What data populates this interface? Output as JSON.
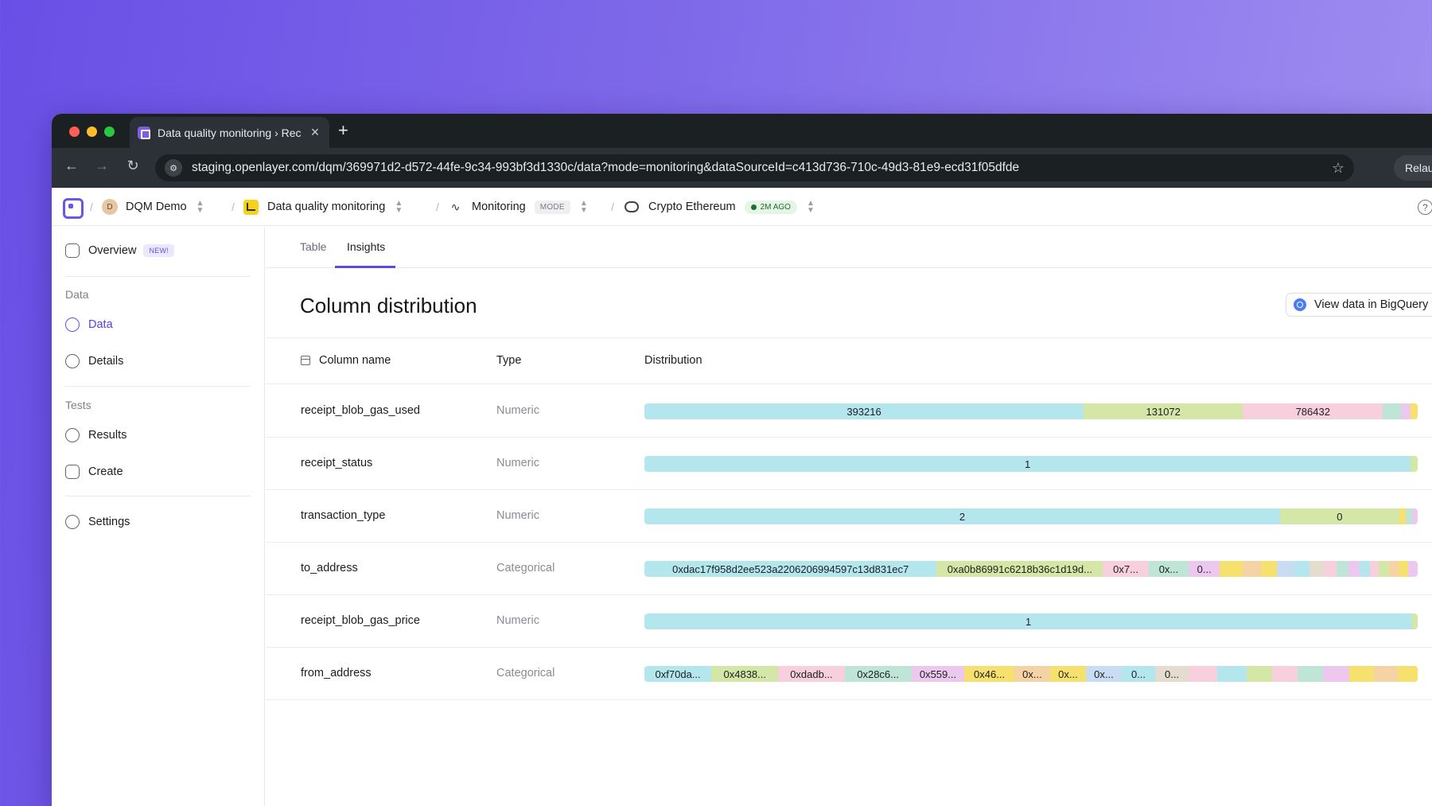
{
  "browser": {
    "tab_title": "Data quality monitoring › Rec",
    "tab_close_glyph": "×",
    "new_tab_glyph": "+",
    "url": "staging.openlayer.com/dqm/369971d2-d572-44fe-9c34-993bf3d1330c/data?mode=monitoring&dataSourceId=c413d736-710c-49d3-81e9-ecd31f05dfde",
    "relaunch_label": "Relau"
  },
  "breadcrumbs": {
    "workspace": "DQM Demo",
    "workspace_initial": "D",
    "project": "Data quality monitoring",
    "mode_label": "Monitoring",
    "mode_badge": "MODE",
    "source": "Crypto Ethereum",
    "source_badge": "2M AGO"
  },
  "sidebar": {
    "overview": "Overview",
    "new_badge": "NEW!",
    "data_heading": "Data",
    "data": "Data",
    "details": "Details",
    "tests_heading": "Tests",
    "results": "Results",
    "create": "Create",
    "settings": "Settings"
  },
  "tabs": {
    "table": "Table",
    "insights": "Insights"
  },
  "page": {
    "title": "Column distribution",
    "bigquery_button": "View data in BigQuery",
    "headers": {
      "name": "Column name",
      "type": "Type",
      "distribution": "Distribution"
    }
  },
  "colors": {
    "accent": "#6548e0",
    "palette": [
      "#b4e6ee",
      "#d4e7a6",
      "#f7cfdd",
      "#bfe5d6",
      "#ecc8ee",
      "#f6e06e",
      "#f6d3a4",
      "#c8dcf3",
      "#e3dccf"
    ]
  },
  "columns": [
    {
      "name": "receipt_blob_gas_used",
      "type": "Numeric",
      "segments": [
        {
          "label": "393216",
          "pct": 56.8,
          "color": "#b4e6ee"
        },
        {
          "label": "131072",
          "pct": 20.6,
          "color": "#d4e7a6"
        },
        {
          "label": "786432",
          "pct": 18.1,
          "color": "#f7cfdd"
        },
        {
          "label": "",
          "pct": 2.3,
          "color": "#bfe5d6"
        },
        {
          "label": "",
          "pct": 1.3,
          "color": "#ecc8ee"
        },
        {
          "label": "",
          "pct": 0.9,
          "color": "#f6e06e"
        }
      ]
    },
    {
      "name": "receipt_status",
      "type": "Numeric",
      "segments": [
        {
          "label": "1",
          "pct": 99.1,
          "color": "#b4e6ee"
        },
        {
          "label": "",
          "pct": 0.9,
          "color": "#d4e7a6"
        }
      ]
    },
    {
      "name": "transaction_type",
      "type": "Numeric",
      "segments": [
        {
          "label": "2",
          "pct": 82.2,
          "color": "#b4e6ee"
        },
        {
          "label": "0",
          "pct": 15.4,
          "color": "#d4e7a6"
        },
        {
          "label": "",
          "pct": 0.9,
          "color": "#f6e06e"
        },
        {
          "label": "",
          "pct": 0.8,
          "color": "#bfe5d6"
        },
        {
          "label": "",
          "pct": 0.7,
          "color": "#ecc8ee"
        }
      ]
    },
    {
      "name": "to_address",
      "type": "Categorical",
      "segments": [
        {
          "label": "0xdac17f958d2ee523a2206206994597c13d831ec7",
          "pct": 37.8,
          "color": "#b4e6ee"
        },
        {
          "label": "0xa0b86991c6218b36c1d19d...",
          "pct": 21.5,
          "color": "#d4e7a6"
        },
        {
          "label": "0x7...",
          "pct": 5.9,
          "color": "#f7cfdd"
        },
        {
          "label": "0x...",
          "pct": 5.2,
          "color": "#bfe5d6"
        },
        {
          "label": "0...",
          "pct": 4.0,
          "color": "#ecc8ee"
        },
        {
          "label": "",
          "pct": 3.0,
          "color": "#f6e06e"
        },
        {
          "label": "",
          "pct": 2.3,
          "color": "#f6d3a4"
        },
        {
          "label": "",
          "pct": 2.1,
          "color": "#f6e06e"
        },
        {
          "label": "",
          "pct": 2.3,
          "color": "#c8dcf3"
        },
        {
          "label": "",
          "pct": 1.9,
          "color": "#b4e6ee"
        },
        {
          "label": "",
          "pct": 1.9,
          "color": "#e3dccf"
        },
        {
          "label": "",
          "pct": 1.6,
          "color": "#f7cfdd"
        },
        {
          "label": "",
          "pct": 1.6,
          "color": "#bfe5d6"
        },
        {
          "label": "",
          "pct": 1.4,
          "color": "#ecc8ee"
        },
        {
          "label": "",
          "pct": 1.3,
          "color": "#b4e6ee"
        },
        {
          "label": "",
          "pct": 1.2,
          "color": "#f7cfdd"
        },
        {
          "label": "",
          "pct": 1.3,
          "color": "#d4e7a6"
        },
        {
          "label": "",
          "pct": 1.2,
          "color": "#f6d3a4"
        },
        {
          "label": "",
          "pct": 1.3,
          "color": "#f6e06e"
        },
        {
          "label": "",
          "pct": 1.2,
          "color": "#ecc8ee"
        }
      ]
    },
    {
      "name": "receipt_blob_gas_price",
      "type": "Numeric",
      "segments": [
        {
          "label": "1",
          "pct": 99.3,
          "color": "#b4e6ee"
        },
        {
          "label": "",
          "pct": 0.7,
          "color": "#d4e7a6"
        }
      ]
    },
    {
      "name": "from_address",
      "type": "Categorical",
      "segments": [
        {
          "label": "0xf70da...",
          "pct": 8.6,
          "color": "#b4e6ee"
        },
        {
          "label": "0x4838...",
          "pct": 8.6,
          "color": "#d4e7a6"
        },
        {
          "label": "0xdadb...",
          "pct": 8.5,
          "color": "#f7cfdd"
        },
        {
          "label": "0x28c6...",
          "pct": 8.6,
          "color": "#bfe5d6"
        },
        {
          "label": "0x559...",
          "pct": 6.8,
          "color": "#ecc8ee"
        },
        {
          "label": "0x46...",
          "pct": 6.4,
          "color": "#f6e06e"
        },
        {
          "label": "0x...",
          "pct": 4.6,
          "color": "#f6d3a4"
        },
        {
          "label": "0x...",
          "pct": 4.6,
          "color": "#f6e06e"
        },
        {
          "label": "0x...",
          "pct": 4.6,
          "color": "#c8dcf3"
        },
        {
          "label": "0...",
          "pct": 4.3,
          "color": "#b4e6ee"
        },
        {
          "label": "0...",
          "pct": 4.3,
          "color": "#e3dccf"
        },
        {
          "label": "",
          "pct": 3.7,
          "color": "#f7cfdd"
        },
        {
          "label": "",
          "pct": 3.7,
          "color": "#b4e6ee"
        },
        {
          "label": "",
          "pct": 3.3,
          "color": "#d4e7a6"
        },
        {
          "label": "",
          "pct": 3.3,
          "color": "#f7cfdd"
        },
        {
          "label": "",
          "pct": 3.3,
          "color": "#bfe5d6"
        },
        {
          "label": "",
          "pct": 3.3,
          "color": "#ecc8ee"
        },
        {
          "label": "",
          "pct": 3.2,
          "color": "#f6e06e"
        },
        {
          "label": "",
          "pct": 3.1,
          "color": "#f6d3a4"
        },
        {
          "label": "",
          "pct": 2.5,
          "color": "#f6e06e"
        }
      ]
    }
  ]
}
